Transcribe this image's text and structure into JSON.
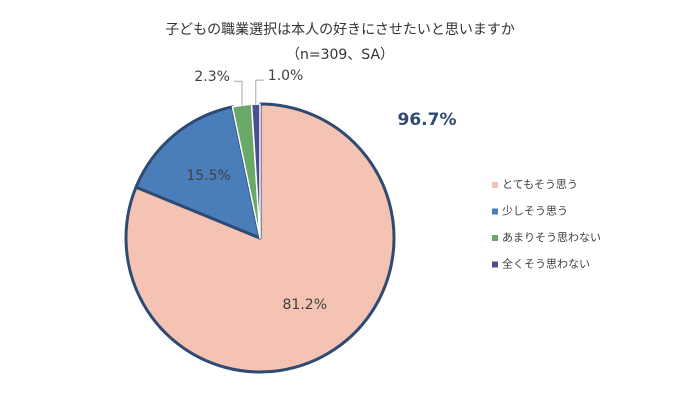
{
  "chart_data": {
    "type": "pie",
    "title": "子どもの職業選択は本人の好きにさせたいと思いますか",
    "subtitle": "（n=309、SA）",
    "annotation": "96.7%",
    "categories": [
      "とてもそう思う",
      "少しそう思う",
      "あまりそう思わない",
      "全くそう思わない"
    ],
    "values": [
      81.2,
      15.5,
      2.3,
      1.0
    ],
    "value_labels": [
      "81.2%",
      "15.5%",
      "2.3%",
      "1.0%"
    ],
    "colors": [
      "#f5c3b3",
      "#4a7ebb",
      "#6aa86a",
      "#4a4f8f"
    ]
  }
}
